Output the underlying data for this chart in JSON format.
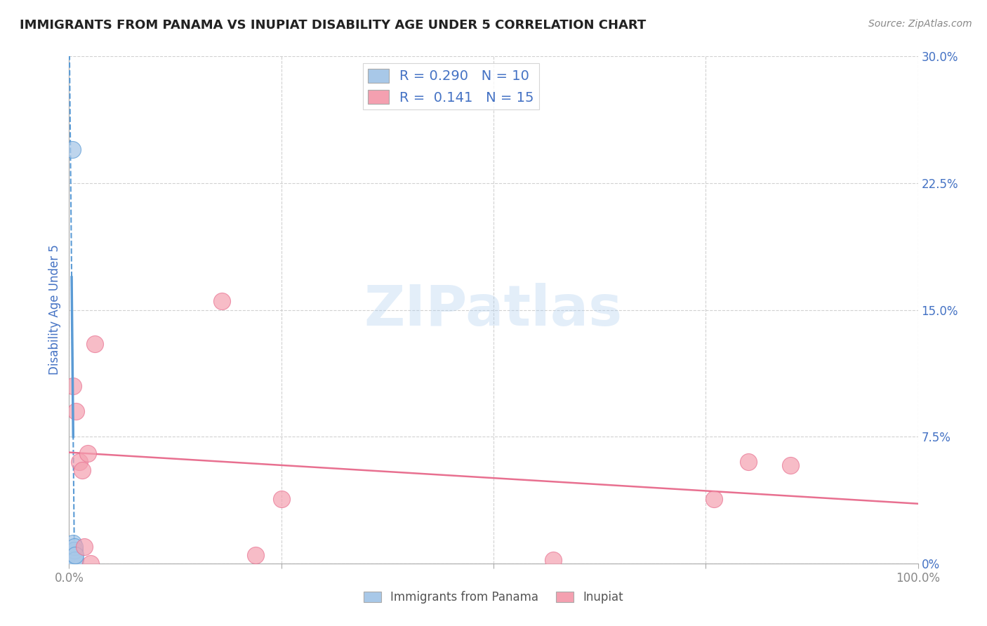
{
  "title": "IMMIGRANTS FROM PANAMA VS INUPIAT DISABILITY AGE UNDER 5 CORRELATION CHART",
  "source": "Source: ZipAtlas.com",
  "ylabel": "Disability Age Under 5",
  "xlim": [
    0,
    1.0
  ],
  "ylim": [
    0,
    0.3
  ],
  "xticks": [
    0.0,
    0.25,
    0.5,
    0.75,
    1.0
  ],
  "xticklabels": [
    "0.0%",
    "",
    "",
    "",
    "100.0%"
  ],
  "yticks": [
    0.0,
    0.075,
    0.15,
    0.225,
    0.3
  ],
  "yticklabels": [
    "0%",
    "7.5%",
    "15.0%",
    "22.5%",
    "30.0%"
  ],
  "blue_R": 0.29,
  "blue_N": 10,
  "pink_R": 0.141,
  "pink_N": 15,
  "blue_color": "#a8c8e8",
  "pink_color": "#f4a0b0",
  "blue_edge_color": "#5b9bd5",
  "pink_edge_color": "#e87090",
  "blue_line_color": "#5b9bd5",
  "pink_line_color": "#e87090",
  "blue_scatter_x": [
    0.004,
    0.005,
    0.005,
    0.005,
    0.006,
    0.006,
    0.006,
    0.006,
    0.007,
    0.007
  ],
  "blue_scatter_y": [
    0.245,
    0.005,
    0.008,
    0.012,
    0.002,
    0.005,
    0.008,
    0.01,
    0.002,
    0.005
  ],
  "pink_scatter_x": [
    0.005,
    0.008,
    0.012,
    0.015,
    0.018,
    0.022,
    0.025,
    0.03,
    0.18,
    0.22,
    0.25,
    0.57,
    0.76,
    0.8,
    0.85
  ],
  "pink_scatter_y": [
    0.105,
    0.09,
    0.06,
    0.055,
    0.01,
    0.065,
    0.0,
    0.13,
    0.155,
    0.005,
    0.038,
    0.002,
    0.038,
    0.06,
    0.058
  ],
  "background_color": "#ffffff",
  "grid_color": "#cccccc",
  "title_color": "#222222",
  "source_color": "#888888",
  "ylabel_color": "#4472c4",
  "ytick_color": "#4472c4",
  "xtick_color": "#888888"
}
